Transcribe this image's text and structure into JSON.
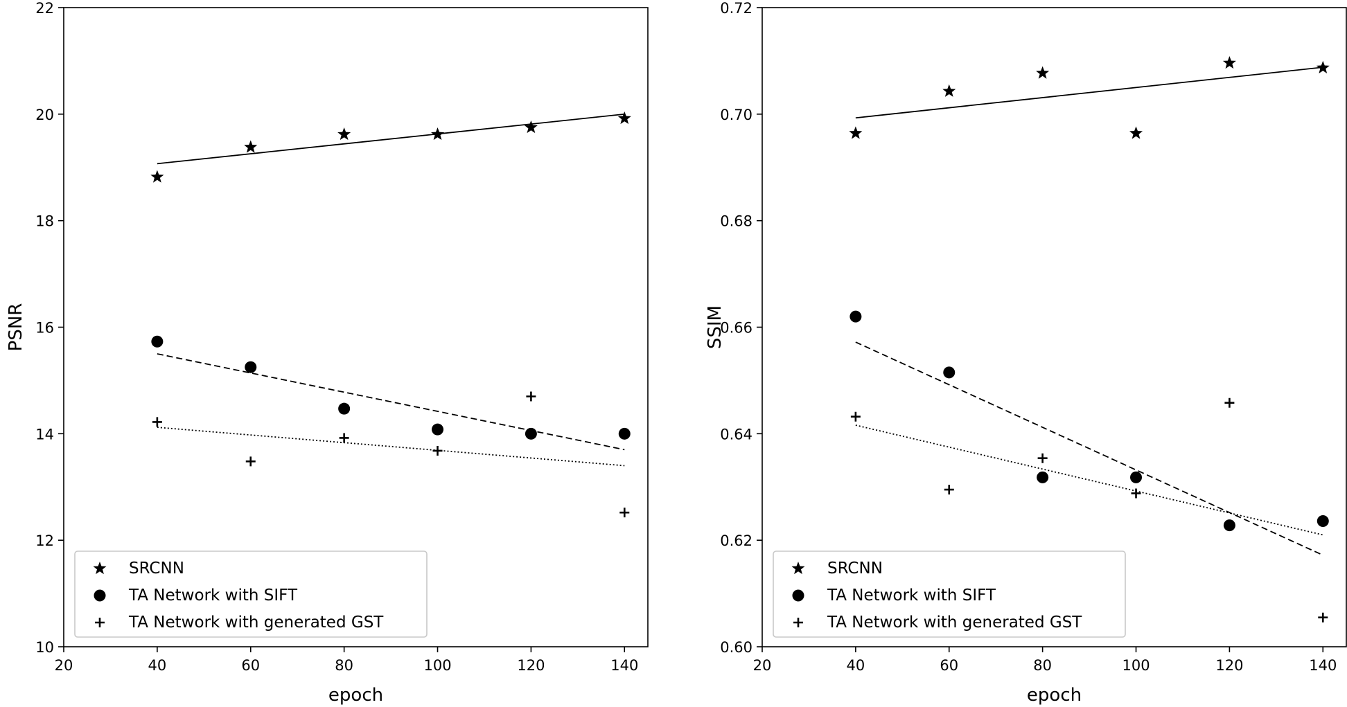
{
  "chart_data": [
    {
      "type": "scatter",
      "xlabel": "epoch",
      "ylabel": "PSNR",
      "xlim": [
        20,
        145
      ],
      "ylim": [
        10,
        22
      ],
      "xticks": [
        20,
        40,
        60,
        80,
        100,
        120,
        140
      ],
      "yticks": [
        10,
        12,
        14,
        16,
        18,
        20,
        22
      ],
      "legend_position": "lower-left",
      "grid": false,
      "series": [
        {
          "name": "SRCNN",
          "marker": "star",
          "points": [
            [
              40,
              18.82
            ],
            [
              60,
              19.38
            ],
            [
              80,
              19.62
            ],
            [
              100,
              19.62
            ],
            [
              120,
              19.75
            ],
            [
              140,
              19.92
            ]
          ],
          "trend": {
            "style": "solid",
            "from": [
              40,
              19.07
            ],
            "to": [
              140,
              20.0
            ]
          }
        },
        {
          "name": "TA Network with SIFT",
          "marker": "circle",
          "points": [
            [
              40,
              15.73
            ],
            [
              60,
              15.25
            ],
            [
              80,
              14.47
            ],
            [
              100,
              14.08
            ],
            [
              120,
              14.0
            ],
            [
              140,
              14.0
            ]
          ],
          "trend": {
            "style": "dashed",
            "from": [
              40,
              15.5
            ],
            "to": [
              140,
              13.7
            ]
          }
        },
        {
          "name": "TA Network with generated GST",
          "marker": "plus",
          "points": [
            [
              40,
              14.22
            ],
            [
              60,
              13.48
            ],
            [
              80,
              13.92
            ],
            [
              100,
              13.68
            ],
            [
              120,
              14.7
            ],
            [
              140,
              12.52
            ]
          ],
          "trend": {
            "style": "dotted",
            "from": [
              40,
              14.12
            ],
            "to": [
              140,
              13.4
            ]
          }
        }
      ]
    },
    {
      "type": "scatter",
      "xlabel": "epoch",
      "ylabel": "SSIM",
      "xlim": [
        20,
        145
      ],
      "ylim": [
        0.6,
        0.72
      ],
      "xticks": [
        20,
        40,
        60,
        80,
        100,
        120,
        140
      ],
      "yticks": [
        0.6,
        0.62,
        0.64,
        0.66,
        0.68,
        0.7,
        0.72
      ],
      "ytick_labels": [
        "0.60",
        "0.62",
        "0.64",
        "0.66",
        "0.68",
        "0.70",
        "0.72"
      ],
      "legend_position": "lower-left",
      "grid": false,
      "series": [
        {
          "name": "SRCNN",
          "marker": "star",
          "points": [
            [
              40,
              0.6964
            ],
            [
              60,
              0.7043
            ],
            [
              80,
              0.7077
            ],
            [
              100,
              0.6964
            ],
            [
              120,
              0.7096
            ],
            [
              140,
              0.7087
            ]
          ],
          "trend": {
            "style": "solid",
            "from": [
              40,
              0.6993
            ],
            "to": [
              140,
              0.7088
            ]
          }
        },
        {
          "name": "TA Network with SIFT",
          "marker": "circle",
          "points": [
            [
              40,
              0.662
            ],
            [
              60,
              0.6515
            ],
            [
              80,
              0.6318
            ],
            [
              100,
              0.6318
            ],
            [
              120,
              0.6228
            ],
            [
              140,
              0.6236
            ]
          ],
          "trend": {
            "style": "dashed",
            "from": [
              40,
              0.6572
            ],
            "to": [
              140,
              0.6172
            ]
          }
        },
        {
          "name": "TA Network with generated GST",
          "marker": "plus",
          "points": [
            [
              40,
              0.6432
            ],
            [
              60,
              0.6295
            ],
            [
              80,
              0.6354
            ],
            [
              100,
              0.6288
            ],
            [
              120,
              0.6458
            ],
            [
              140,
              0.6055
            ]
          ],
          "trend": {
            "style": "dotted",
            "from": [
              40,
              0.6416
            ],
            "to": [
              140,
              0.621
            ]
          }
        }
      ]
    }
  ]
}
